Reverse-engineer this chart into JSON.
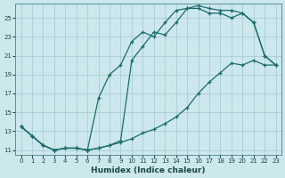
{
  "xlabel": "Humidex (Indice chaleur)",
  "bg_color": "#cce8ec",
  "grid_color": "#aacdd4",
  "line_color": "#1a6b6b",
  "xlim": [
    -0.5,
    23.5
  ],
  "ylim": [
    10.5,
    26.5
  ],
  "xticks": [
    0,
    1,
    2,
    3,
    4,
    5,
    6,
    7,
    8,
    9,
    10,
    11,
    12,
    13,
    14,
    15,
    16,
    17,
    18,
    19,
    20,
    21,
    22,
    23
  ],
  "yticks": [
    11,
    13,
    15,
    17,
    19,
    21,
    23,
    25
  ],
  "line1_x": [
    0,
    1,
    2,
    3,
    4,
    5,
    6,
    7,
    8,
    9,
    10,
    11,
    12,
    13,
    14,
    15,
    16,
    17,
    18,
    19,
    20,
    21,
    22,
    23
  ],
  "line1_y": [
    13.5,
    12.5,
    11.5,
    11.0,
    11.2,
    11.2,
    11.0,
    11.2,
    11.5,
    12.0,
    20.5,
    22.0,
    23.5,
    23.2,
    24.5,
    26.0,
    26.3,
    26.0,
    25.8,
    25.8,
    25.5,
    24.5,
    21.0,
    20.0
  ],
  "line2_x": [
    0,
    1,
    2,
    3,
    4,
    5,
    6,
    7,
    8,
    9,
    10,
    11,
    12,
    13,
    14,
    15,
    16,
    17,
    18,
    19,
    20,
    21,
    22,
    23
  ],
  "line2_y": [
    13.5,
    12.5,
    11.5,
    11.0,
    11.2,
    11.2,
    11.0,
    16.5,
    19.0,
    20.0,
    22.5,
    23.5,
    23.0,
    24.5,
    25.8,
    26.0,
    26.0,
    25.5,
    25.5,
    25.0,
    25.5,
    24.5,
    21.0,
    20.0
  ],
  "line3_x": [
    0,
    1,
    2,
    3,
    4,
    5,
    6,
    7,
    8,
    9,
    10,
    11,
    12,
    13,
    14,
    15,
    16,
    17,
    18,
    19,
    20,
    21,
    22,
    23
  ],
  "line3_y": [
    13.5,
    12.5,
    11.5,
    11.0,
    11.2,
    11.2,
    11.0,
    11.2,
    11.5,
    11.8,
    12.2,
    12.8,
    13.2,
    13.8,
    14.5,
    15.5,
    17.0,
    18.2,
    19.2,
    20.2,
    20.0,
    20.5,
    20.0,
    20.0
  ]
}
